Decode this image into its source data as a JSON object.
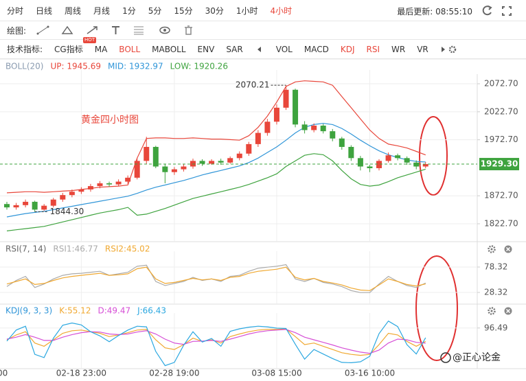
{
  "toolbar": {
    "periods": [
      "分时",
      "日线",
      "周线",
      "月线",
      "1分",
      "5分",
      "15分",
      "30分",
      "1小时",
      "4小时"
    ],
    "active_period": 9,
    "active_color": "#e8463a",
    "updated": "最后更新: 08:55:10"
  },
  "drawing_bar": {
    "label": "绘图:"
  },
  "indicator_bar": {
    "label": "技术指标:",
    "active_color": "#e8463a",
    "items": [
      {
        "text": "CG指标",
        "badge": "HOT"
      },
      {
        "text": "MA"
      },
      {
        "text": "BOLL",
        "active": true
      },
      {
        "text": "MABOLL"
      },
      {
        "text": "ENV"
      },
      {
        "text": "SAR"
      },
      {
        "text": "VOL"
      },
      {
        "text": "MACD"
      },
      {
        "text": "KDJ",
        "active": true
      },
      {
        "text": "RSI",
        "active": true
      },
      {
        "text": "WR"
      },
      {
        "text": "VR"
      }
    ]
  },
  "chart_data": [
    {
      "type": "candlestick",
      "title": "黄金四小时图",
      "indicator": "BOLL(20)",
      "indicator_color": "#8a9bb0",
      "categories": [
        "00",
        null,
        null,
        null,
        null,
        null,
        null,
        null,
        "02-18 23:00",
        null,
        null,
        null,
        null,
        null,
        null,
        null,
        null,
        null,
        "02-28 19:00",
        null,
        null,
        null,
        null,
        null,
        null,
        null,
        null,
        null,
        null,
        "03-08 15:00",
        null,
        null,
        null,
        null,
        null,
        null,
        null,
        null,
        null,
        "03-16 10:00",
        null,
        null,
        null,
        null,
        null,
        null
      ],
      "open": [
        1858,
        1852,
        1856,
        1862,
        1848,
        1855,
        1866,
        1874,
        1880,
        1884,
        1890,
        1895,
        1893,
        1898,
        1905,
        1935,
        1960,
        1925,
        1915,
        1920,
        1925,
        1935,
        1930,
        1935,
        1932,
        1940,
        1948,
        1965,
        1985,
        2005,
        2030,
        2062,
        2000,
        1990,
        1998,
        1988,
        1975,
        1960,
        1940,
        1925,
        1922,
        1935,
        1945,
        1940,
        1932,
        1925
      ],
      "high": [
        1862,
        1860,
        1866,
        1864,
        1858,
        1869,
        1878,
        1884,
        1888,
        1894,
        1899,
        1898,
        1902,
        1909,
        1940,
        1978,
        1962,
        1930,
        1924,
        1929,
        1939,
        1938,
        1938,
        1939,
        1943,
        1952,
        1969,
        1990,
        2010,
        2036,
        2070.21,
        2064,
        2006,
        2002,
        2001,
        1992,
        1978,
        1963,
        1944,
        1928,
        1938,
        1950,
        1948,
        1943,
        1936,
        1933
      ],
      "low": [
        1848,
        1848,
        1852,
        1844.3,
        1846,
        1852,
        1862,
        1870,
        1876,
        1880,
        1886,
        1889,
        1890,
        1894,
        1902,
        1930,
        1922,
        1895,
        1910,
        1916,
        1921,
        1926,
        1928,
        1928,
        1930,
        1936,
        1944,
        1960,
        1980,
        2000,
        2026,
        1995,
        1984,
        1986,
        1984,
        1970,
        1955,
        1935,
        1918,
        1915,
        1918,
        1932,
        1936,
        1928,
        1920,
        1922
      ],
      "close": [
        1852,
        1856,
        1862,
        1848,
        1855,
        1866,
        1874,
        1880,
        1884,
        1890,
        1895,
        1893,
        1898,
        1905,
        1935,
        1960,
        1925,
        1915,
        1920,
        1925,
        1935,
        1930,
        1935,
        1932,
        1940,
        1948,
        1965,
        1985,
        2005,
        2030,
        2062,
        2000,
        1990,
        1998,
        1988,
        1975,
        1960,
        1940,
        1925,
        1922,
        1935,
        1945,
        1940,
        1932,
        1925,
        1929.3
      ],
      "up_color": "#e8463a",
      "down_color": "#3ea33e",
      "series": [
        {
          "legend": "UP: 1945.69",
          "color": "#e8463a",
          "values": [
            1878,
            1879,
            1880,
            1880,
            1879,
            1880,
            1881,
            1882,
            1884,
            1886,
            1888,
            1889,
            1890,
            1892,
            1940,
            1975,
            1976,
            1976,
            1975,
            1975,
            1976,
            1975,
            1974,
            1974,
            1973,
            1972,
            1980,
            1995,
            2015,
            2040,
            2068,
            2076,
            2078,
            2077,
            2076,
            2070,
            2050,
            2030,
            2010,
            1990,
            1975,
            1965,
            1962,
            1958,
            1952,
            1945.69
          ]
        },
        {
          "legend": "MID: 1932.97",
          "color": "#2f95d8",
          "values": [
            1835,
            1838,
            1841,
            1843,
            1845,
            1848,
            1851,
            1854,
            1857,
            1860,
            1863,
            1866,
            1869,
            1872,
            1877,
            1883,
            1888,
            1892,
            1896,
            1900,
            1905,
            1910,
            1914,
            1918,
            1922,
            1926,
            1932,
            1940,
            1950,
            1960,
            1972,
            1985,
            1995,
            2000,
            2002,
            2000,
            1993,
            1983,
            1972,
            1962,
            1953,
            1946,
            1941,
            1937,
            1934,
            1932.97
          ]
        },
        {
          "legend": "LOW: 1920.26",
          "color": "#3ea33e",
          "values": [
            1810,
            1812,
            1814,
            1816,
            1818,
            1822,
            1826,
            1830,
            1834,
            1838,
            1842,
            1845,
            1848,
            1852,
            1838,
            1840,
            1845,
            1850,
            1856,
            1862,
            1868,
            1872,
            1876,
            1880,
            1884,
            1888,
            1893,
            1899,
            1905,
            1912,
            1925,
            1935,
            1945,
            1948,
            1946,
            1935,
            1918,
            1903,
            1893,
            1890,
            1892,
            1898,
            1905,
            1910,
            1915,
            1920.26
          ]
        }
      ],
      "ylim": [
        1793.3,
        2089.9
      ],
      "yticks": [
        {
          "value": 1822.7,
          "label": "1822.70"
        },
        {
          "value": 1872.7,
          "label": "1872.70"
        },
        {
          "value": 1972.7,
          "label": "1972.70"
        },
        {
          "value": 2022.7,
          "label": "2022.70"
        },
        {
          "value": 2072.7,
          "label": "2072.70"
        }
      ],
      "grid": true,
      "last_price": {
        "value": 1929.3,
        "label": "1929.30",
        "color": "#3ea33e"
      },
      "max_label": "2070.21",
      "min_label": "1844.30"
    },
    {
      "type": "line",
      "indicator": "RSI(7, 14)",
      "indicator_color": "#666666",
      "series": [
        {
          "legend": "RSI1:46.77",
          "color": "#aaaaaa",
          "values": [
            40,
            52,
            60,
            38,
            45,
            55,
            62,
            65,
            66,
            68,
            70,
            62,
            65,
            68,
            80,
            82,
            50,
            42,
            46,
            50,
            58,
            52,
            55,
            50,
            60,
            62,
            70,
            76,
            78,
            80,
            83,
            55,
            50,
            56,
            48,
            45,
            40,
            32,
            28,
            28,
            45,
            60,
            50,
            42,
            38,
            46.77
          ]
        },
        {
          "legend": "RSI2:45.02",
          "color": "#f0a830",
          "values": [
            45,
            50,
            55,
            44,
            46,
            52,
            57,
            60,
            62,
            64,
            66,
            62,
            63,
            65,
            75,
            78,
            55,
            46,
            48,
            52,
            56,
            53,
            55,
            52,
            58,
            60,
            66,
            70,
            72,
            74,
            78,
            58,
            53,
            56,
            50,
            47,
            43,
            37,
            33,
            32,
            43,
            55,
            50,
            44,
            41,
            45.02
          ]
        }
      ],
      "ylim": [
        9.4,
        101.3
      ],
      "yticks": [
        28.32,
        78.32
      ],
      "grid": true
    },
    {
      "type": "line",
      "indicator": "KDJ(9, 3, 3)",
      "indicator_color": "#2f95d8",
      "series": [
        {
          "legend": "K:55.12",
          "color": "#f0a830",
          "values": [
            60,
            75,
            85,
            50,
            40,
            60,
            80,
            88,
            90,
            85,
            80,
            70,
            75,
            82,
            90,
            92,
            60,
            35,
            30,
            45,
            65,
            55,
            60,
            50,
            70,
            78,
            85,
            90,
            92,
            92,
            93,
            70,
            45,
            50,
            40,
            30,
            20,
            15,
            12,
            15,
            45,
            80,
            75,
            55,
            40,
            55.12
          ]
        },
        {
          "legend": "D:49.47",
          "color": "#d64fd6",
          "values": [
            62,
            68,
            76,
            68,
            58,
            58,
            68,
            76,
            82,
            85,
            84,
            78,
            76,
            78,
            84,
            88,
            78,
            62,
            50,
            46,
            55,
            56,
            58,
            55,
            62,
            70,
            78,
            84,
            88,
            90,
            92,
            82,
            68,
            60,
            52,
            44,
            35,
            28,
            22,
            18,
            28,
            50,
            62,
            60,
            52,
            49.47
          ]
        },
        {
          "legend": "J:66.43",
          "color": "#2aa7e0",
          "values": [
            56,
            90,
            102,
            15,
            5,
            65,
            105,
            112,
            106,
            85,
            72,
            54,
            73,
            90,
            102,
            100,
            24,
            -20,
            -10,
            43,
            85,
            53,
            64,
            40,
            86,
            94,
            99,
            102,
            100,
            96,
            95,
            46,
            0,
            30,
            16,
            2,
            -10,
            -11,
            -8,
            9,
            79,
            118,
            101,
            45,
            16,
            66.43
          ]
        }
      ],
      "ylim": [
        -25,
        130
      ],
      "yticks": [
        96.49
      ],
      "grid": true
    }
  ],
  "watermark": "@正心论金"
}
